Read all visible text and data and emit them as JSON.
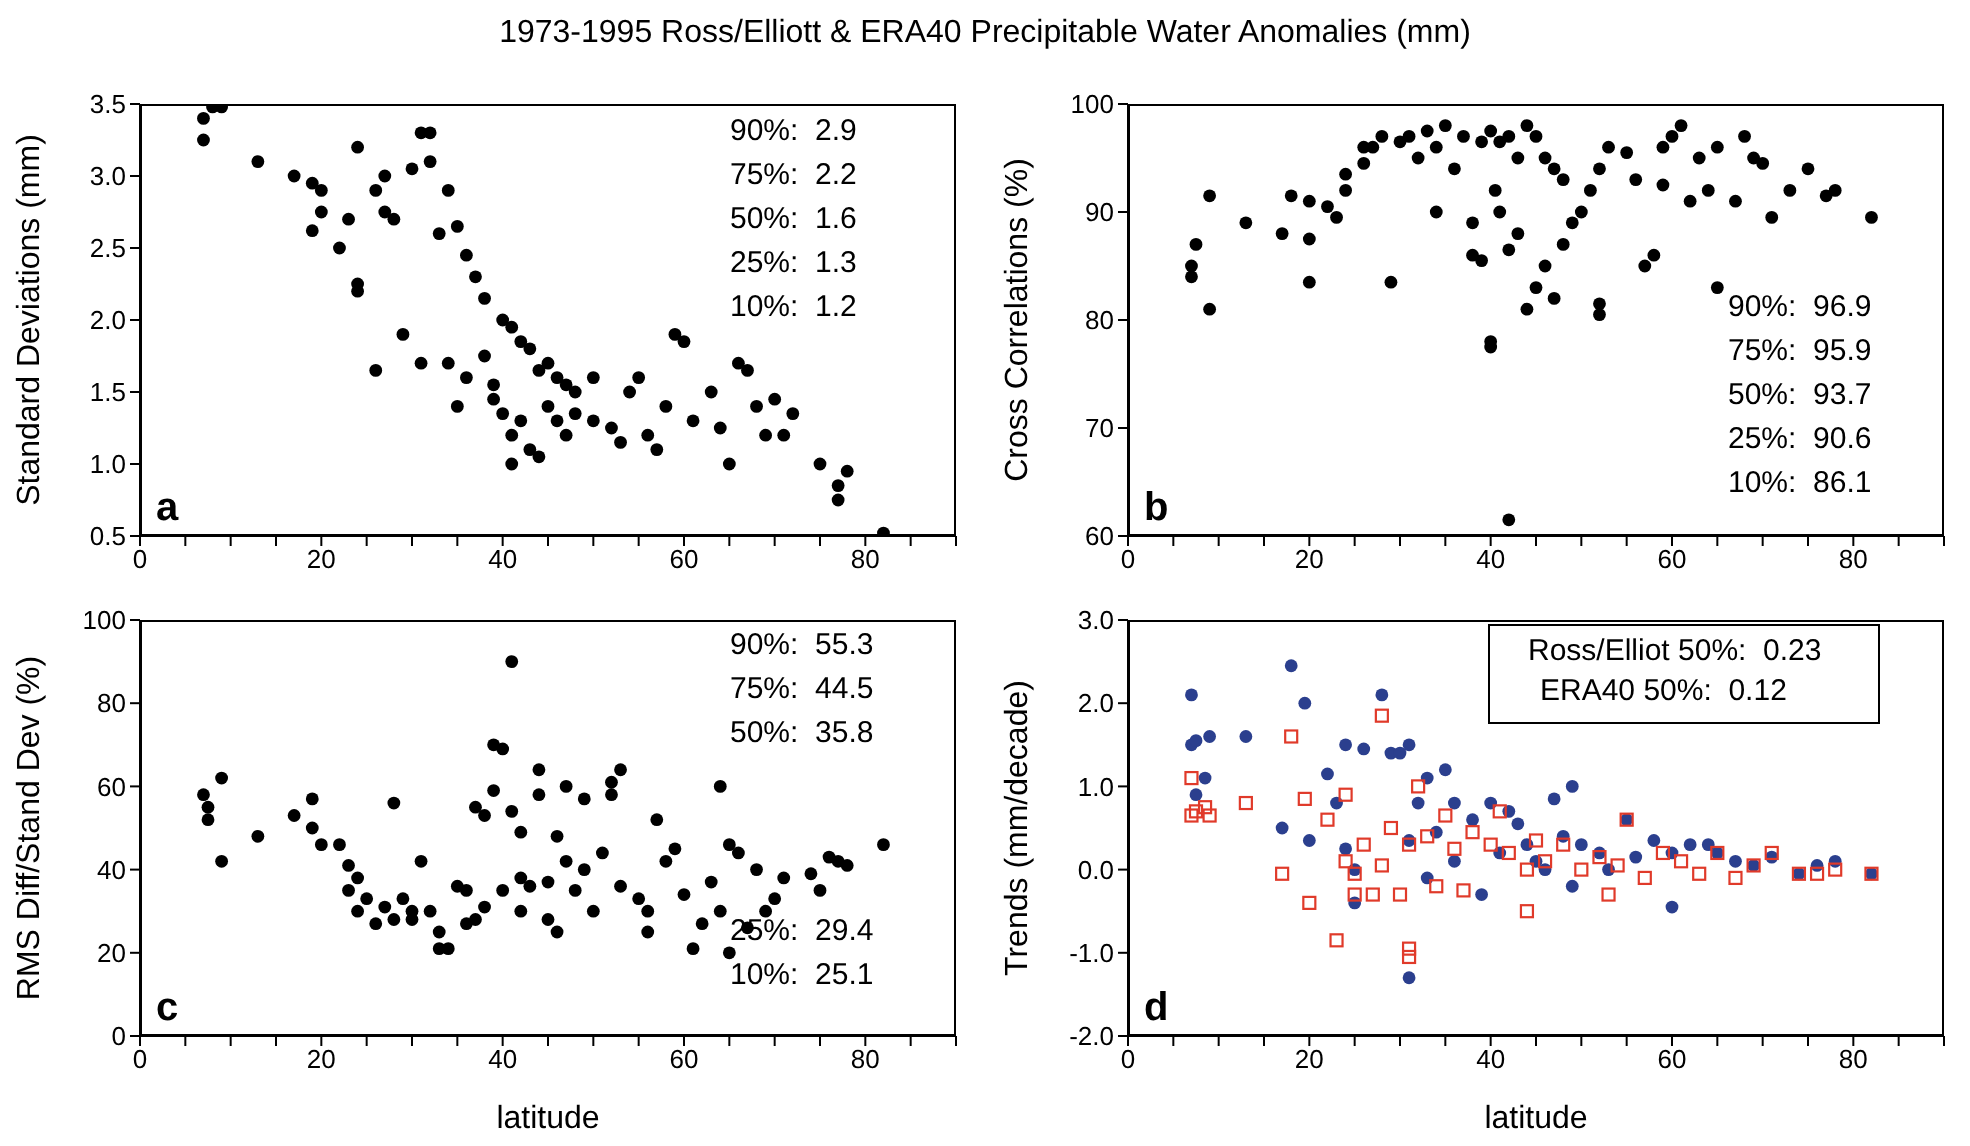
{
  "chart_data": [
    {
      "type": "scatter",
      "title": "1973-1995 Ross/Elliott & ERA40 Precipitable Water Anomalies (mm)",
      "ylabel": "Standard Deviations (mm)",
      "marker": "circle",
      "annotations": [
        "a",
        "90%:  2.9",
        "75%:  2.2",
        "50%:  1.6",
        "25%:  1.3",
        "10%:  1.2"
      ],
      "xlim": [
        0,
        90
      ],
      "xticks": [
        0,
        {
          "value": 5,
          "label": null
        },
        {
          "value": 10,
          "label": null
        },
        {
          "value": 15,
          "label": null
        },
        20,
        {
          "value": 25,
          "label": null
        },
        {
          "value": 30,
          "label": null
        },
        {
          "value": 35,
          "label": null
        },
        40,
        {
          "value": 45,
          "label": null
        },
        {
          "value": 50,
          "label": null
        },
        {
          "value": 55,
          "label": null
        },
        60,
        {
          "value": 65,
          "label": null
        },
        {
          "value": 70,
          "label": null
        },
        {
          "value": 75,
          "label": null
        },
        80,
        {
          "value": 85,
          "label": null
        },
        {
          "value": 90,
          "label": null
        }
      ],
      "ylim": [
        0.5,
        3.5
      ],
      "yticks": [
        0.5,
        {
          "value": 1,
          "label": "1.0"
        },
        1.5,
        {
          "value": 2,
          "label": "2.0"
        },
        2.5,
        {
          "value": 3,
          "label": "3.0"
        },
        3.5
      ],
      "series": [
        {
          "color": "#000000",
          "x": [
            7,
            7,
            8,
            9,
            13,
            17,
            19,
            20,
            20,
            19,
            22,
            23,
            24,
            24,
            26,
            27,
            27,
            28,
            30,
            31,
            32,
            32,
            34,
            33,
            35,
            36,
            37,
            38,
            40,
            41,
            43,
            44,
            45,
            46,
            47,
            48,
            26,
            31,
            34,
            36,
            38,
            39,
            40,
            41,
            41,
            42,
            43,
            44,
            45,
            46,
            48,
            50,
            52,
            53,
            54,
            56,
            58,
            59,
            60,
            61,
            63,
            64,
            65,
            66,
            67,
            68,
            69,
            70,
            71,
            72,
            75,
            77,
            77,
            78,
            82,
            55,
            57,
            50,
            47,
            42,
            39,
            29,
            24,
            35
          ],
          "values": [
            3.4,
            3.25,
            3.48,
            3.48,
            3.1,
            3.0,
            2.95,
            2.9,
            2.75,
            2.62,
            2.5,
            2.7,
            3.2,
            2.25,
            2.9,
            3.0,
            2.75,
            2.7,
            3.05,
            3.3,
            3.3,
            3.1,
            2.9,
            2.6,
            2.65,
            2.45,
            2.3,
            2.15,
            2.0,
            1.95,
            1.8,
            1.65,
            1.7,
            1.6,
            1.55,
            1.5,
            1.65,
            1.7,
            1.7,
            1.6,
            1.75,
            1.45,
            1.35,
            1.2,
            1.0,
            1.3,
            1.1,
            1.05,
            1.4,
            1.3,
            1.35,
            1.3,
            1.25,
            1.15,
            1.5,
            1.2,
            1.4,
            1.9,
            1.85,
            1.3,
            1.5,
            1.25,
            1.0,
            1.7,
            1.65,
            1.4,
            1.2,
            1.45,
            1.2,
            1.35,
            1.0,
            0.75,
            0.85,
            0.95,
            0.52,
            1.6,
            1.1,
            1.6,
            1.2,
            1.85,
            1.55,
            1.9,
            2.2,
            1.4
          ]
        }
      ]
    },
    {
      "type": "scatter",
      "ylabel": "Cross Correlations (%)",
      "marker": "circle",
      "annotations": [
        "b",
        "90%:  96.9",
        "75%:  95.9",
        "50%:  93.7",
        "25%:  90.6",
        "10%:  86.1"
      ],
      "xlim": [
        0,
        90
      ],
      "xticks": [
        0,
        {
          "value": 5,
          "label": null
        },
        {
          "value": 10,
          "label": null
        },
        {
          "value": 15,
          "label": null
        },
        20,
        {
          "value": 25,
          "label": null
        },
        {
          "value": 30,
          "label": null
        },
        {
          "value": 35,
          "label": null
        },
        40,
        {
          "value": 45,
          "label": null
        },
        {
          "value": 50,
          "label": null
        },
        {
          "value": 55,
          "label": null
        },
        60,
        {
          "value": 65,
          "label": null
        },
        {
          "value": 70,
          "label": null
        },
        {
          "value": 75,
          "label": null
        },
        80,
        {
          "value": 85,
          "label": null
        },
        {
          "value": 90,
          "label": null
        }
      ],
      "ylim": [
        60,
        100
      ],
      "yticks": [
        60,
        70,
        80,
        90,
        100
      ],
      "series": [
        {
          "color": "#000000",
          "x": [
            7,
            7,
            7.5,
            9,
            9,
            13,
            17,
            18,
            20,
            20,
            20,
            22,
            23,
            24,
            24,
            26,
            26,
            27,
            28,
            29,
            30,
            31,
            32,
            33,
            34,
            35,
            37,
            38,
            39,
            40,
            41,
            42,
            43,
            44,
            45,
            46,
            47,
            48,
            38,
            39,
            40,
            40,
            40.5,
            41,
            42,
            43,
            44,
            45,
            46,
            47,
            48,
            49,
            50,
            51,
            52,
            53,
            55,
            56,
            57,
            58,
            59,
            60,
            61,
            62,
            63,
            64,
            65,
            65,
            67,
            68,
            69,
            70,
            71,
            73,
            75,
            77,
            78,
            82,
            42,
            36,
            34,
            52,
            52,
            59
          ],
          "values": [
            84,
            85,
            87,
            91.5,
            81,
            89,
            88,
            91.5,
            91,
            87.5,
            83.5,
            90.5,
            89.5,
            93.5,
            92,
            94.5,
            96,
            96,
            97,
            83.5,
            96.5,
            97,
            95,
            97.5,
            96,
            98,
            97,
            89,
            96.5,
            97.5,
            96.5,
            97,
            95,
            98,
            97,
            95,
            94,
            93,
            86,
            85.5,
            78,
            77.5,
            92,
            90,
            86.5,
            88,
            81,
            83,
            85,
            82,
            87,
            89,
            90,
            92,
            94,
            96,
            95.5,
            93,
            85,
            86,
            96,
            97,
            98,
            91,
            95,
            92,
            96,
            83,
            91,
            97,
            95,
            94.5,
            89.5,
            92,
            94,
            91.5,
            92,
            89.5,
            61.5,
            94,
            90,
            80.5,
            81.5,
            92.5
          ]
        }
      ]
    },
    {
      "type": "scatter",
      "ylabel": "RMS Diff/Stand Dev (%)",
      "xlabel": "latitude",
      "marker": "circle",
      "annotations": [
        "c",
        "90%:  55.3",
        "75%:  44.5",
        "50%:  35.8",
        "25%:  29.4",
        "10%:  25.1"
      ],
      "xlim": [
        0,
        90
      ],
      "xticks": [
        0,
        {
          "value": 5,
          "label": null
        },
        {
          "value": 10,
          "label": null
        },
        {
          "value": 15,
          "label": null
        },
        20,
        {
          "value": 25,
          "label": null
        },
        {
          "value": 30,
          "label": null
        },
        {
          "value": 35,
          "label": null
        },
        40,
        {
          "value": 45,
          "label": null
        },
        {
          "value": 50,
          "label": null
        },
        {
          "value": 55,
          "label": null
        },
        60,
        {
          "value": 65,
          "label": null
        },
        {
          "value": 70,
          "label": null
        },
        {
          "value": 75,
          "label": null
        },
        80,
        {
          "value": 85,
          "label": null
        },
        {
          "value": 90,
          "label": null
        }
      ],
      "ylim": [
        0,
        100
      ],
      "yticks": [
        0,
        20,
        40,
        60,
        80,
        100
      ],
      "series": [
        {
          "color": "#000000",
          "x": [
            7,
            7.5,
            7.5,
            9,
            9,
            13,
            17,
            19,
            19,
            20,
            22,
            23,
            23,
            24,
            24,
            25,
            26,
            27,
            28,
            28,
            30,
            30,
            31,
            32,
            33,
            33,
            34,
            35,
            36,
            36,
            37,
            38,
            38,
            39,
            39,
            40,
            40,
            41,
            41,
            42,
            42,
            43,
            44,
            44,
            45,
            45,
            46,
            47,
            47,
            48,
            49,
            49,
            50,
            51,
            52,
            52,
            53,
            53,
            55,
            56,
            57,
            58,
            59,
            60,
            61,
            62,
            63,
            64,
            64,
            65,
            65,
            66,
            67,
            68,
            69,
            70,
            71,
            74,
            75,
            76,
            77,
            78,
            82,
            46,
            42,
            37,
            56,
            29
          ],
          "values": [
            58,
            55,
            52,
            62,
            42,
            48,
            53,
            57,
            50,
            46,
            46,
            41,
            35,
            38,
            30,
            33,
            27,
            31,
            56,
            28,
            28,
            30,
            42,
            30,
            25,
            21,
            21,
            36,
            35,
            27,
            55,
            53,
            31,
            59,
            70,
            69,
            35,
            90,
            54,
            49,
            38,
            36,
            64,
            58,
            37,
            28,
            48,
            60,
            42,
            35,
            40,
            57,
            30,
            44,
            58,
            61,
            64,
            36,
            33,
            25,
            52,
            42,
            45,
            34,
            21,
            27,
            37,
            30,
            60,
            46,
            20,
            44,
            26,
            40,
            30,
            33,
            38,
            39,
            35,
            43,
            42,
            41,
            46,
            25,
            30,
            28,
            30,
            33
          ]
        }
      ]
    },
    {
      "type": "scatter",
      "ylabel": "Trends (mm/decade)",
      "xlabel": "latitude",
      "annotations": [
        "d",
        "Ross/Elliot 50%:  0.23",
        "ERA40 50%:  0.12"
      ],
      "xlim": [
        0,
        90
      ],
      "xticks": [
        0,
        {
          "value": 5,
          "label": null
        },
        {
          "value": 10,
          "label": null
        },
        {
          "value": 15,
          "label": null
        },
        20,
        {
          "value": 25,
          "label": null
        },
        {
          "value": 30,
          "label": null
        },
        {
          "value": 35,
          "label": null
        },
        40,
        {
          "value": 45,
          "label": null
        },
        {
          "value": 50,
          "label": null
        },
        {
          "value": 55,
          "label": null
        },
        60,
        {
          "value": 65,
          "label": null
        },
        {
          "value": 70,
          "label": null
        },
        {
          "value": 75,
          "label": null
        },
        80,
        {
          "value": 85,
          "label": null
        },
        {
          "value": 90,
          "label": null
        }
      ],
      "ylim": [
        -2,
        3
      ],
      "yticks": [
        {
          "value": -2,
          "label": "-2.0"
        },
        {
          "value": -1,
          "label": "-1.0"
        },
        {
          "value": 0,
          "label": "0.0"
        },
        {
          "value": 1,
          "label": "1.0"
        },
        {
          "value": 2,
          "label": "2.0"
        },
        {
          "value": 3,
          "label": "3.0"
        }
      ],
      "series": [
        {
          "color": "#2b3f8e",
          "marker": "circle",
          "x": [
            7,
            7,
            7.5,
            7.5,
            8.5,
            9,
            13,
            17,
            18,
            19.5,
            20,
            22,
            23,
            24,
            24,
            25,
            25,
            26,
            28,
            29,
            30,
            31,
            31,
            32,
            33,
            34,
            35,
            36,
            38,
            39,
            40,
            41,
            42,
            43,
            44,
            45,
            46,
            47,
            48,
            49,
            49,
            50,
            52,
            53,
            55,
            56,
            58,
            60,
            60,
            62,
            64,
            65,
            67,
            69,
            71,
            74,
            76,
            78,
            82,
            31,
            36,
            33
          ],
          "values": [
            2.1,
            1.5,
            1.55,
            0.9,
            1.1,
            1.6,
            1.6,
            0.5,
            2.45,
            2.0,
            0.35,
            1.15,
            0.8,
            0.25,
            1.5,
            0.0,
            -0.4,
            1.45,
            2.1,
            1.4,
            1.4,
            1.5,
            0.35,
            0.8,
            1.1,
            0.45,
            1.2,
            0.8,
            0.6,
            -0.3,
            0.8,
            0.2,
            0.7,
            0.55,
            0.3,
            0.1,
            0.0,
            0.85,
            0.4,
            -0.2,
            1.0,
            0.3,
            0.2,
            0.0,
            0.6,
            0.15,
            0.35,
            0.2,
            -0.45,
            0.3,
            0.3,
            0.2,
            0.1,
            0.05,
            0.15,
            -0.05,
            0.05,
            0.1,
            -0.05,
            -1.3,
            0.1,
            -0.1
          ]
        },
        {
          "color": "#e03a2a",
          "marker": "square",
          "x": [
            7,
            7,
            7.5,
            8.5,
            9,
            13,
            17,
            18,
            19.5,
            20,
            22,
            23,
            24,
            24,
            25,
            26,
            27,
            28,
            28,
            29,
            30,
            31,
            31,
            32,
            33,
            34,
            35,
            36,
            37,
            38,
            40,
            41,
            42,
            44,
            45,
            46,
            48,
            50,
            52,
            53,
            54,
            55,
            57,
            59,
            61,
            63,
            65,
            67,
            69,
            71,
            74,
            76,
            78,
            82,
            31,
            25,
            44
          ],
          "values": [
            1.1,
            0.65,
            0.7,
            0.75,
            0.65,
            0.8,
            -0.05,
            1.6,
            0.85,
            -0.4,
            0.6,
            -0.85,
            0.9,
            0.1,
            -0.3,
            0.3,
            -0.3,
            1.85,
            0.05,
            0.5,
            -0.3,
            -0.95,
            0.3,
            1.0,
            0.4,
            -0.2,
            0.65,
            0.25,
            -0.25,
            0.45,
            0.3,
            0.7,
            0.2,
            -0.5,
            0.35,
            0.1,
            0.3,
            0.0,
            0.15,
            -0.3,
            0.05,
            0.6,
            -0.1,
            0.2,
            0.1,
            -0.05,
            0.2,
            -0.1,
            0.05,
            0.2,
            -0.05,
            -0.05,
            0.0,
            -0.05,
            -1.05,
            -0.05,
            0.0
          ]
        }
      ]
    }
  ]
}
